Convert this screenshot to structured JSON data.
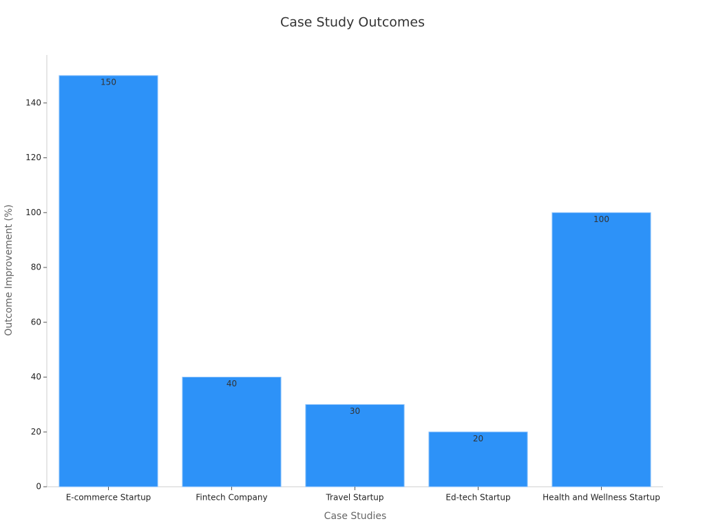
{
  "chart_data": {
    "type": "bar",
    "title": "Case Study Outcomes",
    "x_label": "Case Studies",
    "y_label": "Outcome Improvement (%)",
    "categories": [
      "E-commerce Startup",
      "Fintech Company",
      "Travel Startup",
      "Ed-tech Startup",
      "Health and Wellness Startup"
    ],
    "values": [
      150,
      40,
      30,
      20,
      100
    ],
    "color": "#2d92f8",
    "ylim": [
      0,
      157.5
    ],
    "yticks": [
      0,
      20,
      40,
      60,
      80,
      100,
      120,
      140
    ],
    "grid": false,
    "data_labels": true
  }
}
